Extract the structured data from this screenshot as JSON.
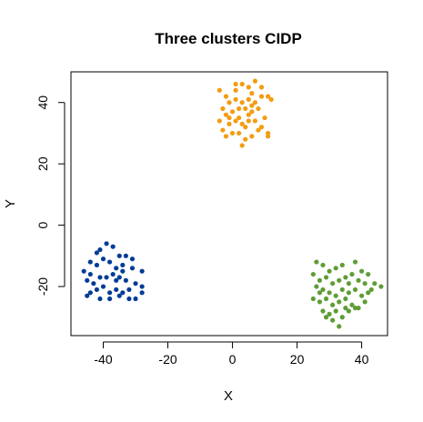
{
  "chart_data": {
    "type": "scatter",
    "title": "Three clusters CIDP",
    "xlabel": "X",
    "ylabel": "Y",
    "xlim": [
      -50,
      48
    ],
    "ylim": [
      -36,
      50
    ],
    "xticks": [
      -40,
      -20,
      0,
      20,
      40
    ],
    "yticks": [
      -20,
      0,
      20,
      40
    ],
    "xtick_labels": [
      "-40",
      "-20",
      "0",
      "20",
      "40"
    ],
    "ytick_labels": [
      "-20",
      "0",
      "20",
      "40"
    ],
    "grid": false,
    "legend": "none",
    "series": [
      {
        "color": "#f39c12",
        "points": [
          [
            -4,
            44
          ],
          [
            -2,
            42
          ],
          [
            1,
            46
          ],
          [
            3,
            46
          ],
          [
            5,
            45
          ],
          [
            7,
            47
          ],
          [
            9,
            45
          ],
          [
            11,
            42
          ],
          [
            -3,
            38
          ],
          [
            -1,
            40
          ],
          [
            1,
            41
          ],
          [
            3,
            40
          ],
          [
            5,
            41
          ],
          [
            7,
            40
          ],
          [
            9,
            42
          ],
          [
            12,
            41
          ],
          [
            -4,
            34
          ],
          [
            -2,
            36
          ],
          [
            0,
            37
          ],
          [
            2,
            38
          ],
          [
            4,
            38
          ],
          [
            6,
            37
          ],
          [
            8,
            38
          ],
          [
            10,
            35
          ],
          [
            -3,
            31
          ],
          [
            -1,
            33
          ],
          [
            1,
            34
          ],
          [
            3,
            33
          ],
          [
            5,
            34
          ],
          [
            7,
            34
          ],
          [
            9,
            32
          ],
          [
            11,
            30
          ],
          [
            -2,
            29
          ],
          [
            0,
            30
          ],
          [
            2,
            30
          ],
          [
            4,
            28
          ],
          [
            6,
            29
          ],
          [
            3,
            26
          ],
          [
            11,
            29
          ],
          [
            5,
            36
          ],
          [
            1,
            44
          ],
          [
            6,
            43
          ],
          [
            -1,
            35
          ],
          [
            8,
            31
          ],
          [
            4,
            32
          ],
          [
            2,
            35
          ],
          [
            6,
            39
          ]
        ]
      },
      {
        "color": "#003c96",
        "points": [
          [
            -46,
            -15
          ],
          [
            -44,
            -12
          ],
          [
            -41,
            -8
          ],
          [
            -39,
            -6
          ],
          [
            -37,
            -7
          ],
          [
            -35,
            -10
          ],
          [
            -33,
            -10
          ],
          [
            -31,
            -11
          ],
          [
            -44,
            -16
          ],
          [
            -42,
            -13
          ],
          [
            -40,
            -11
          ],
          [
            -38,
            -12
          ],
          [
            -36,
            -14
          ],
          [
            -34,
            -13
          ],
          [
            -31,
            -14
          ],
          [
            -28,
            -15
          ],
          [
            -45,
            -18
          ],
          [
            -43,
            -19
          ],
          [
            -41,
            -17
          ],
          [
            -39,
            -17
          ],
          [
            -37,
            -16
          ],
          [
            -35,
            -17
          ],
          [
            -33,
            -18
          ],
          [
            -30,
            -19
          ],
          [
            -44,
            -22
          ],
          [
            -42,
            -21
          ],
          [
            -40,
            -20
          ],
          [
            -38,
            -22
          ],
          [
            -36,
            -21
          ],
          [
            -34,
            -22
          ],
          [
            -32,
            -21
          ],
          [
            -28,
            -20
          ],
          [
            -45,
            -23
          ],
          [
            -41,
            -24
          ],
          [
            -38,
            -24
          ],
          [
            -35,
            -23
          ],
          [
            -32,
            -24
          ],
          [
            -30,
            -24
          ],
          [
            -28,
            -22
          ],
          [
            -42,
            -9
          ],
          [
            -36,
            -18
          ],
          [
            -34,
            -15
          ]
        ]
      },
      {
        "color": "#5e9d35",
        "points": [
          [
            26,
            -12
          ],
          [
            28,
            -13
          ],
          [
            30,
            -15
          ],
          [
            32,
            -14
          ],
          [
            34,
            -13
          ],
          [
            38,
            -12
          ],
          [
            40,
            -15
          ],
          [
            42,
            -16
          ],
          [
            25,
            -16
          ],
          [
            27,
            -18
          ],
          [
            29,
            -17
          ],
          [
            31,
            -19
          ],
          [
            33,
            -18
          ],
          [
            35,
            -17
          ],
          [
            37,
            -16
          ],
          [
            39,
            -18
          ],
          [
            41,
            -19
          ],
          [
            44,
            -19
          ],
          [
            46,
            -20
          ],
          [
            26,
            -20
          ],
          [
            28,
            -21
          ],
          [
            30,
            -22
          ],
          [
            32,
            -23
          ],
          [
            34,
            -21
          ],
          [
            36,
            -22
          ],
          [
            38,
            -21
          ],
          [
            40,
            -23
          ],
          [
            43,
            -21
          ],
          [
            25,
            -24
          ],
          [
            27,
            -25
          ],
          [
            29,
            -24
          ],
          [
            31,
            -26
          ],
          [
            33,
            -25
          ],
          [
            35,
            -24
          ],
          [
            37,
            -26
          ],
          [
            39,
            -27
          ],
          [
            41,
            -25
          ],
          [
            28,
            -28
          ],
          [
            30,
            -29
          ],
          [
            32,
            -28
          ],
          [
            34,
            -30
          ],
          [
            36,
            -28
          ],
          [
            38,
            -27
          ],
          [
            31,
            -31
          ],
          [
            33,
            -33
          ],
          [
            29,
            -30
          ],
          [
            36,
            -19
          ],
          [
            42,
            -22
          ],
          [
            27,
            -22
          ],
          [
            35,
            -27
          ]
        ]
      }
    ]
  }
}
